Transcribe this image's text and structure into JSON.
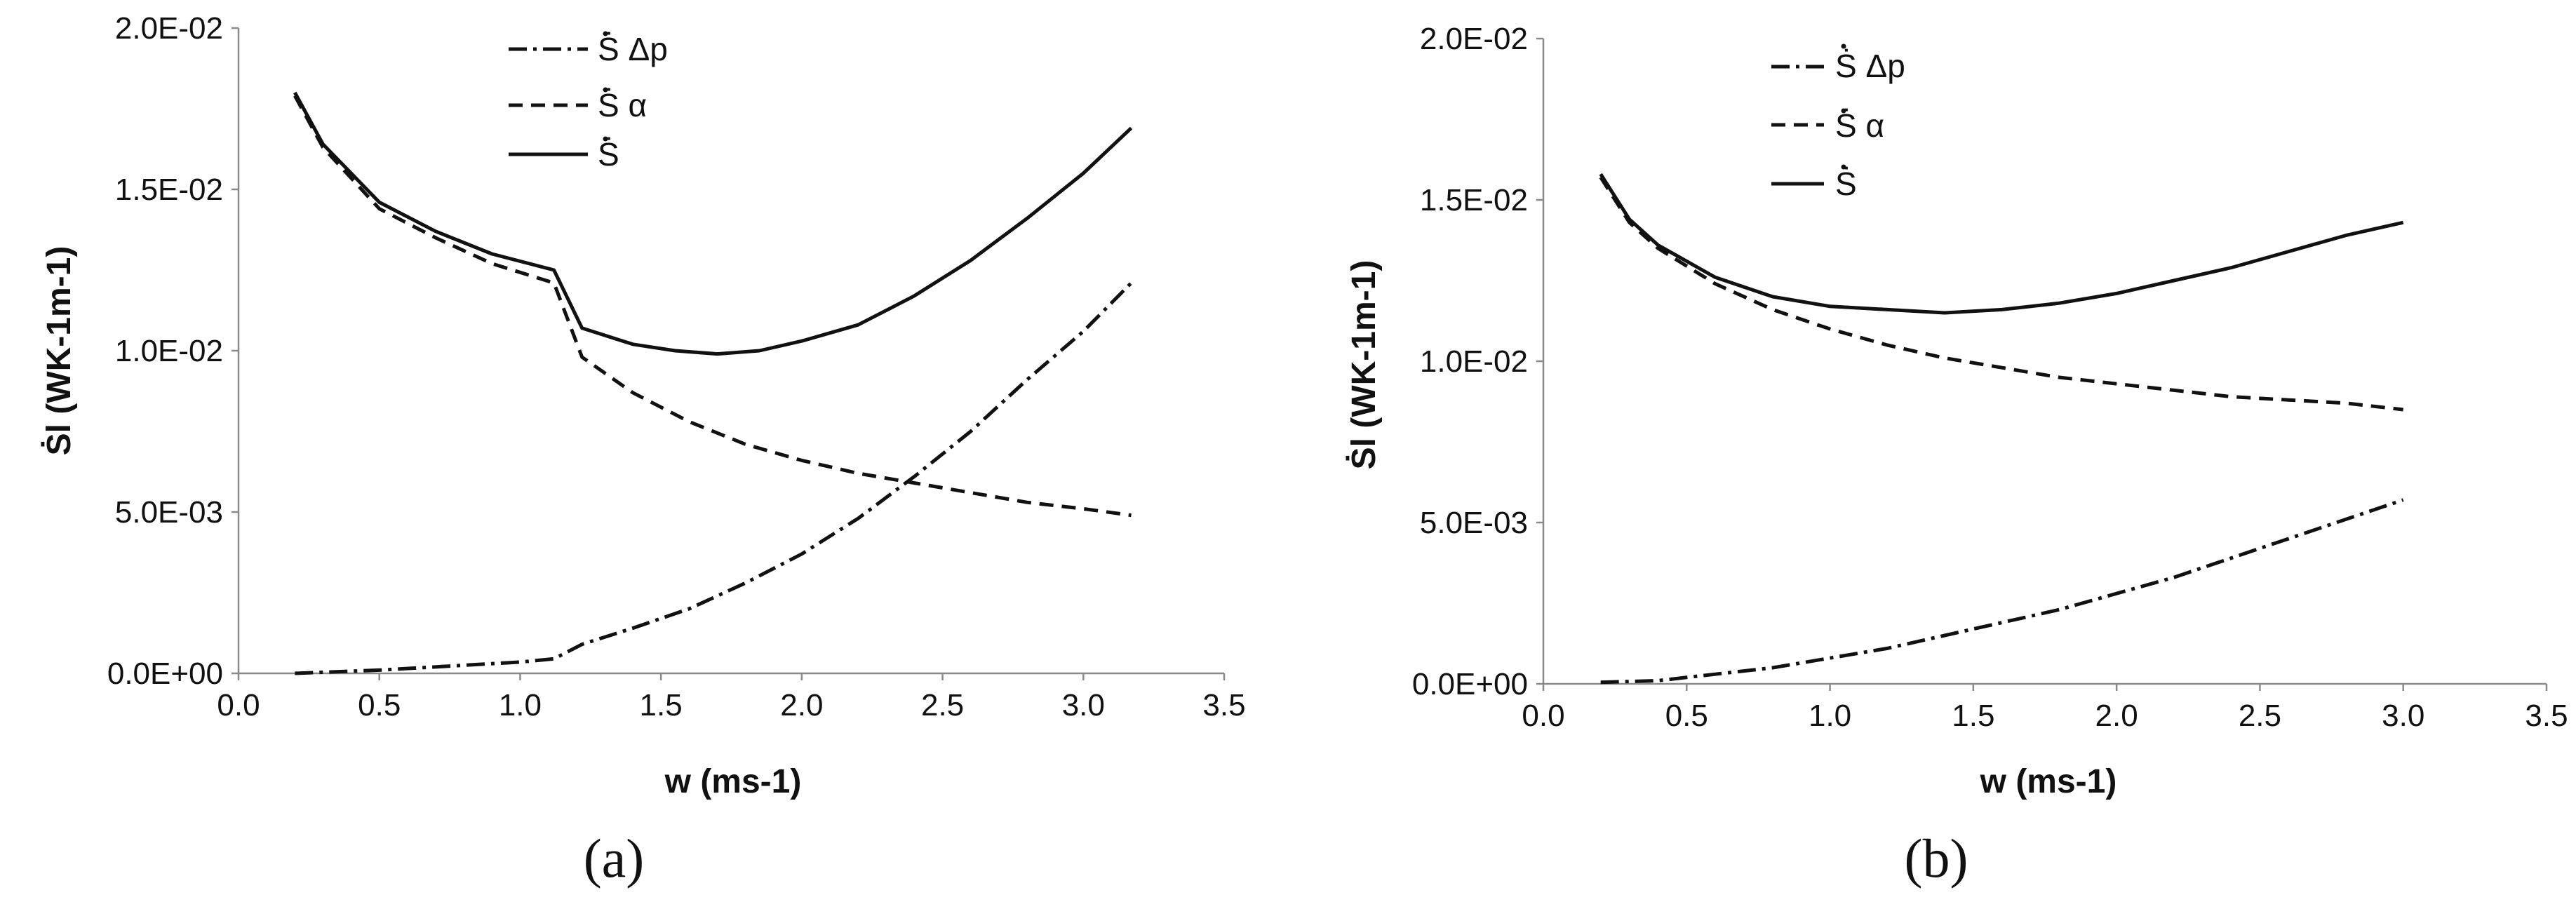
{
  "chart_data": [
    {
      "type": "line",
      "panel_label": "(a)",
      "xlabel": "w (ms-1)",
      "ylabel": "Ṡl (WK-1m-1)",
      "xlim": [
        0,
        3.5
      ],
      "ylim": [
        0,
        0.02
      ],
      "x_ticks": [
        "0.0",
        "0.5",
        "1.0",
        "1.5",
        "2.0",
        "2.5",
        "3.0",
        "3.5"
      ],
      "y_ticks": [
        "0.0E+00",
        "5.0E-03",
        "1.0E-02",
        "1.5E-02",
        "2.0E-02"
      ],
      "legend": [
        "Ṡ Δp",
        "Ṡ α",
        "Ṡ"
      ],
      "legend_position": "top-center",
      "series": [
        {
          "name": "S_dp",
          "style": "dash-dot",
          "x": [
            0.2,
            0.5,
            0.8,
            1.0,
            1.12,
            1.22,
            1.4,
            1.6,
            1.8,
            2.0,
            2.2,
            2.4,
            2.6,
            2.8,
            3.0,
            3.17
          ],
          "y": [
            0.0,
            0.0001,
            0.00025,
            0.00035,
            0.00045,
            0.0009,
            0.0014,
            0.002,
            0.0028,
            0.0037,
            0.0048,
            0.0061,
            0.0075,
            0.0091,
            0.0106,
            0.0121
          ]
        },
        {
          "name": "S_alpha",
          "style": "dashed",
          "x": [
            0.2,
            0.3,
            0.5,
            0.7,
            0.9,
            1.12,
            1.22,
            1.4,
            1.6,
            1.8,
            2.0,
            2.2,
            2.4,
            2.6,
            2.8,
            3.0,
            3.17
          ],
          "y": [
            0.0179,
            0.0163,
            0.0144,
            0.0135,
            0.0127,
            0.0121,
            0.0098,
            0.0087,
            0.0078,
            0.0071,
            0.0066,
            0.0062,
            0.0059,
            0.0056,
            0.0053,
            0.0051,
            0.0049
          ]
        },
        {
          "name": "S_total",
          "style": "solid",
          "x": [
            0.2,
            0.3,
            0.5,
            0.7,
            0.9,
            1.12,
            1.22,
            1.4,
            1.55,
            1.7,
            1.85,
            2.0,
            2.2,
            2.4,
            2.6,
            2.8,
            3.0,
            3.17
          ],
          "y": [
            0.018,
            0.0164,
            0.0146,
            0.0137,
            0.013,
            0.0125,
            0.0107,
            0.0102,
            0.01,
            0.0099,
            0.01,
            0.0103,
            0.0108,
            0.0117,
            0.0128,
            0.0141,
            0.0155,
            0.0169
          ]
        }
      ]
    },
    {
      "type": "line",
      "panel_label": "(b)",
      "xlabel": "w (ms-1)",
      "ylabel": "Ṡl (WK-1m-1)",
      "xlim": [
        0,
        3.5
      ],
      "ylim": [
        0,
        0.02
      ],
      "x_ticks": [
        "0.0",
        "0.5",
        "1.0",
        "1.5",
        "2.0",
        "2.5",
        "3.0",
        "3.5"
      ],
      "y_ticks": [
        "0.0E+00",
        "5.0E-03",
        "1.0E-02",
        "1.5E-02",
        "2.0E-02"
      ],
      "legend": [
        "Ṡ Δp",
        "Ṡ α",
        "Ṡ"
      ],
      "legend_position": "top-center",
      "series": [
        {
          "name": "S_dp",
          "style": "dash-dot",
          "x": [
            0.2,
            0.4,
            0.6,
            0.8,
            1.0,
            1.2,
            1.4,
            1.6,
            1.8,
            2.0,
            2.2,
            2.4,
            2.6,
            2.8,
            3.0
          ],
          "y": [
            5e-05,
            0.0001,
            0.0003,
            0.0005,
            0.0008,
            0.0011,
            0.0015,
            0.0019,
            0.0023,
            0.0028,
            0.0033,
            0.0039,
            0.0045,
            0.0051,
            0.0057
          ]
        },
        {
          "name": "S_alpha",
          "style": "dashed",
          "x": [
            0.2,
            0.3,
            0.4,
            0.6,
            0.8,
            1.0,
            1.2,
            1.4,
            1.6,
            1.8,
            2.0,
            2.2,
            2.4,
            2.6,
            2.8,
            3.0
          ],
          "y": [
            0.0157,
            0.0143,
            0.0135,
            0.0124,
            0.0116,
            0.011,
            0.0105,
            0.0101,
            0.0098,
            0.0095,
            0.0093,
            0.0091,
            0.0089,
            0.0088,
            0.0087,
            0.0085
          ]
        },
        {
          "name": "S_total",
          "style": "solid",
          "x": [
            0.2,
            0.3,
            0.4,
            0.6,
            0.8,
            1.0,
            1.2,
            1.4,
            1.6,
            1.8,
            2.0,
            2.2,
            2.4,
            2.6,
            2.8,
            3.0
          ],
          "y": [
            0.0158,
            0.0144,
            0.0136,
            0.0126,
            0.012,
            0.0117,
            0.0116,
            0.0115,
            0.0116,
            0.0118,
            0.0121,
            0.0125,
            0.0129,
            0.0134,
            0.0139,
            0.0143
          ]
        }
      ]
    }
  ]
}
